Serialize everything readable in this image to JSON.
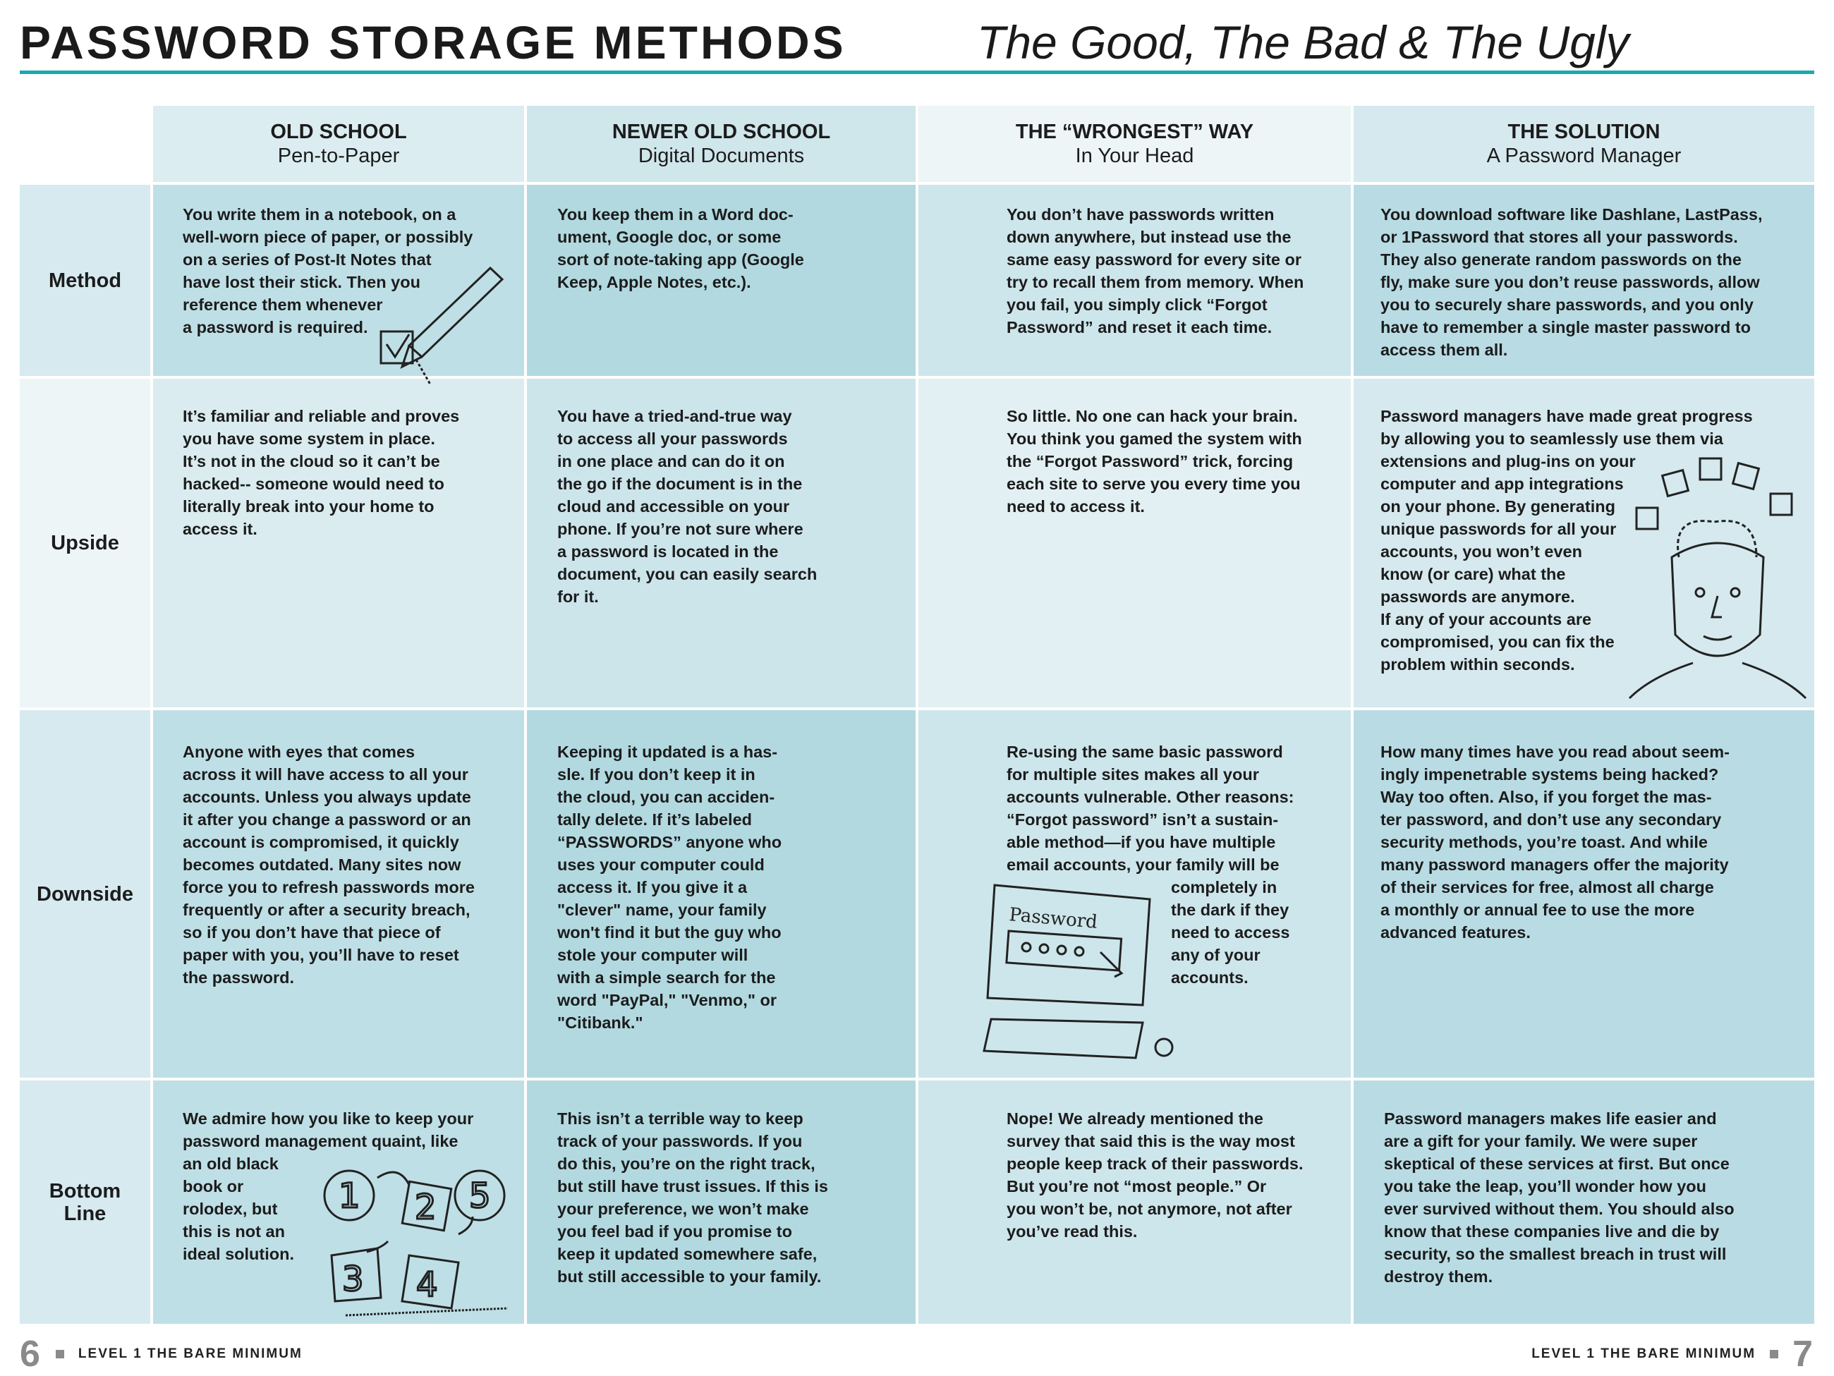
{
  "header": {
    "title": "PASSWORD STORAGE METHODS",
    "subtitle": "The Good, The Bad & The Ugly"
  },
  "columns": [
    {
      "title": "OLD SCHOOL",
      "sub": "Pen-to-Paper"
    },
    {
      "title": "NEWER OLD SCHOOL",
      "sub": "Digital Documents"
    },
    {
      "title": "THE “WRONGEST” WAY",
      "sub": "In Your Head"
    },
    {
      "title": "THE SOLUTION",
      "sub": "A Password Manager"
    }
  ],
  "rows": [
    {
      "label": "Method",
      "cells": [
        "You write them in a notebook, on a\nwell-worn piece of paper, or possibly\non a series of Post-It Notes that\nhave lost their stick. Then you\nreference them whenever\na password is required.",
        "You keep them in a Word doc-\nument, Google doc, or some\nsort of note-taking app (Google\nKeep, Apple Notes, etc.).",
        "You don’t have passwords written\ndown anywhere, but instead use the\nsame easy password for every site or\ntry to recall them from memory. When\nyou fail, you simply click “Forgot\nPassword” and reset it each time.",
        "You download software like Dashlane, LastPass,\nor 1Password that stores all your passwords.\nThey also generate random passwords on the\nfly, make sure you don’t reuse passwords, allow\nyou to securely share passwords, and you only\nhave to remember a single master password to\naccess them all."
      ]
    },
    {
      "label": "Upside",
      "cells": [
        "It’s familiar and reliable and proves\nyou have some system in place.\nIt’s not in the cloud so it can’t be\nhacked-- someone would need to\nliterally break into your home to\naccess it.",
        "You have a tried-and-true way\nto access all your passwords\nin one place and can do it on\nthe go if the document is in the\ncloud and accessible on your\nphone. If you’re not sure where\na password is located in the\ndocument, you can easily search\nfor it.",
        "So little. No one can hack your brain.\nYou think you gamed the system with\nthe “Forgot Password” trick, forcing\neach site to serve you every time you\nneed to access it.",
        "Password managers have made great progress\nby allowing you to seamlessly use them via\nextensions and plug-ins on your\ncomputer and app integrations\non your phone. By generating\nunique passwords for all your\naccounts, you won’t even\nknow (or care) what the\npasswords are anymore.\nIf any of your accounts are\ncompromised, you can fix the\nproblem within seconds."
      ]
    },
    {
      "label": "Downside",
      "cells": [
        "Anyone with eyes that comes\nacross it will have access to all your\naccounts. Unless you always update\nit after you change a password or an\naccount is compromised, it quickly\nbecomes outdated. Many sites now\nforce you to refresh passwords more\nfrequently or after a security breach,\nso if you don’t have that piece of\npaper with you, you’ll have to reset\nthe password.",
        "Keeping it updated is a has-\nsle. If you don’t keep it in\nthe cloud, you can acciden-\ntally delete. If it’s labeled\n“PASSWORDS” anyone who\nuses your computer could\naccess it. If you give it a\n\"clever\" name, your family\nwon't find it but the guy who\nstole your computer will\nwith a simple search for the\nword \"PayPal,\" \"Venmo,\" or\n\"Citibank.\"",
        "Re-using the same basic password\nfor multiple sites makes all your\naccounts vulnerable. Other reasons:\n“Forgot password” isn’t a sustain-\nable method—if you have multiple\nemail accounts, your family will be",
        "How many times have you read about seem-\ningly impenetrable systems being hacked?\nWay too often. Also, if you forget the mas-\nter password, and don’t use any secondary\nsecurity methods, you’re toast. And while\nmany password managers offer the majority\nof their services for free, almost all charge\na monthly or annual fee to use the more\nadvanced features."
      ],
      "cell3_continued": "completely in\nthe dark if they\nneed to access\nany of your\naccounts."
    },
    {
      "label": "Bottom\nLine",
      "cells": [
        "We admire how you like to keep your\npassword management quaint, like\nan old black\nbook or\nrolodex, but\nthis is not an\nideal solution.",
        "This isn’t a terrible way to keep\ntrack of your passwords. If you\ndo this, you’re on the right track,\nbut still have trust issues. If this is\nyour preference, we won’t make\nyou feel bad if you promise to\nkeep it updated somewhere safe,\nbut still accessible to your family.",
        "Nope! We already mentioned the\nsurvey that said this is the way most\npeople keep track of their passwords.\nBut you’re not “most people.” Or\nyou won’t be, not anymore, not after\nyou’ve read this.",
        "Password managers makes life easier and\nare a gift for your family. We were super\nskeptical of these services at first. But once\nyou take the leap, you’ll wonder how you\never survived without them. You should also\nknow that these companies live and die by\nsecurity, so the smallest breach in trust will\ndestroy them."
      ]
    }
  ],
  "illustrations": {
    "password_screen_text": "Password",
    "number_tiles": [
      "1",
      "2",
      "5",
      "3",
      "4"
    ]
  },
  "footer": {
    "left_page": "6",
    "right_page": "7",
    "left_text": "LEVEL 1 THE BARE MINIMUM",
    "right_text": "LEVEL 1 THE BARE MINIMUM"
  },
  "colors": {
    "accent": "#1aa9b0"
  }
}
